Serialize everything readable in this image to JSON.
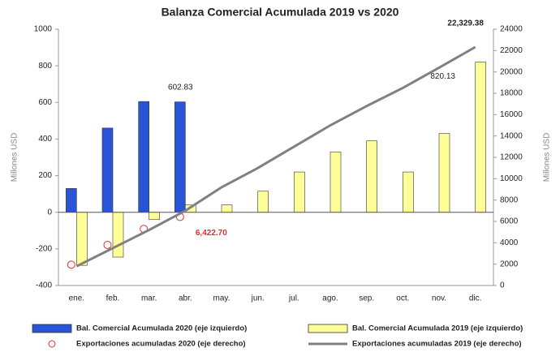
{
  "chart_data": {
    "type": "bar_line",
    "title": "Balanza Comercial Acumulada 2019 vs 2020",
    "ylabel": "Millones USD",
    "y2label": "Millones USD",
    "categories": [
      "ene.",
      "feb.",
      "mar.",
      "abr.",
      "may.",
      "jun.",
      "jul.",
      "ago.",
      "sep.",
      "oct.",
      "nov.",
      "dic."
    ],
    "ylim": [
      -400,
      1000
    ],
    "yticks": [
      -400,
      -200,
      0,
      200,
      400,
      600,
      800,
      1000
    ],
    "y2lim": [
      0,
      24000
    ],
    "y2ticks": [
      0,
      2000,
      4000,
      6000,
      8000,
      10000,
      12000,
      14000,
      16000,
      18000,
      20000,
      22000,
      24000
    ],
    "series": [
      {
        "name": "Bal. Comercial Acumulada 2020 (eje izquierdo)",
        "kind": "bar",
        "color": "#2a54d6",
        "values": [
          130,
          460,
          605,
          602.83,
          null,
          null,
          null,
          null,
          null,
          null,
          null,
          null
        ],
        "value_labels": [
          null,
          null,
          null,
          "602.83",
          null,
          null,
          null,
          null,
          null,
          null,
          null,
          null
        ]
      },
      {
        "name": "Bal. Comercial Acumulada 2019 (eje izquierdo)",
        "kind": "bar",
        "color": "#ffff99",
        "values": [
          -290,
          -245,
          -40,
          40,
          40,
          115,
          220,
          330,
          390,
          220,
          430,
          820.13
        ],
        "value_labels": [
          null,
          null,
          null,
          null,
          null,
          null,
          null,
          null,
          null,
          null,
          null,
          "820.13"
        ]
      },
      {
        "name": "Exportaciones acumuladas 2020 (eje derecho)",
        "kind": "marker",
        "axis": "y2",
        "color": "#e03030",
        "values": [
          1950,
          3800,
          5300,
          6422.7,
          null,
          null,
          null,
          null,
          null,
          null,
          null,
          null
        ],
        "value_labels": [
          null,
          null,
          null,
          "6,422.70",
          null,
          null,
          null,
          null,
          null,
          null,
          null,
          null
        ]
      },
      {
        "name": "Exportaciones acumuladas 2019 (eje derecho)",
        "kind": "line",
        "axis": "y2",
        "color": "#808080",
        "values": [
          1800,
          3500,
          5200,
          7000,
          9200,
          11000,
          13000,
          15000,
          16800,
          18500,
          20400,
          22329.38
        ],
        "value_labels": [
          null,
          null,
          null,
          null,
          null,
          null,
          null,
          null,
          null,
          null,
          null,
          "22,329.38"
        ]
      }
    ]
  }
}
